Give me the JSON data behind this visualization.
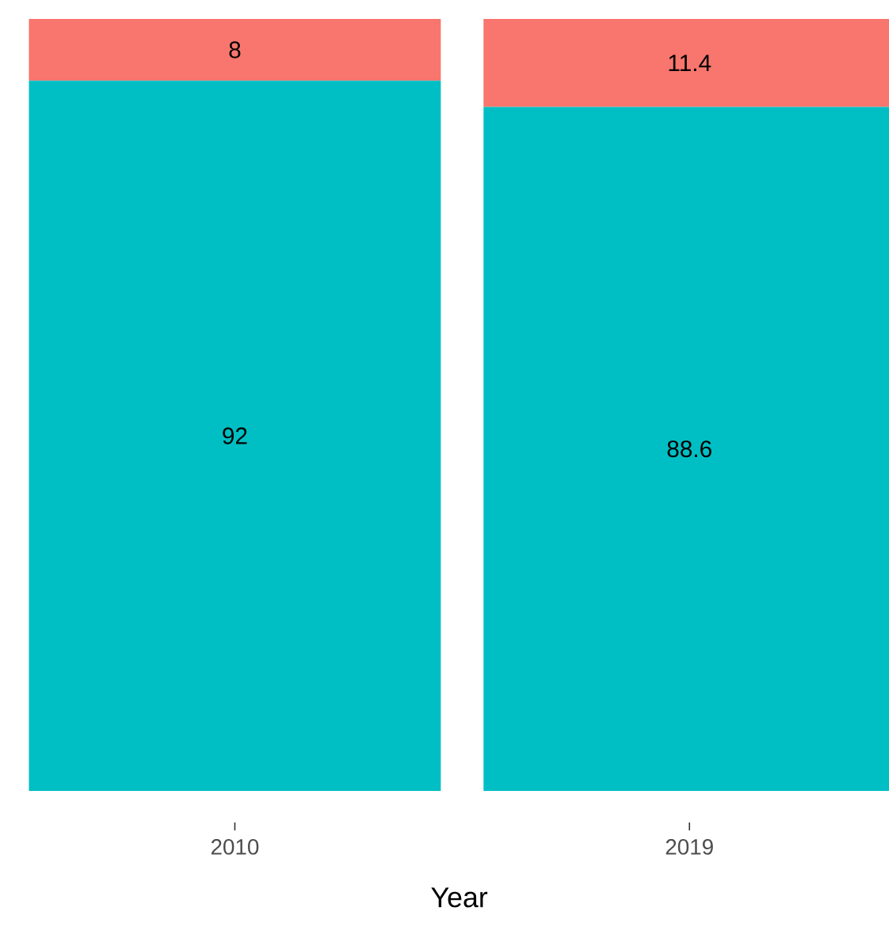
{
  "chart_data": {
    "type": "bar",
    "stacked": true,
    "xlabel": "Year",
    "categories": [
      "2010",
      "2019"
    ],
    "series": [
      {
        "color": "#00bfc4",
        "values": [
          92,
          88.6
        ]
      },
      {
        "color": "#f8766d",
        "values": [
          8,
          11.4
        ]
      }
    ],
    "data_labels": true
  }
}
